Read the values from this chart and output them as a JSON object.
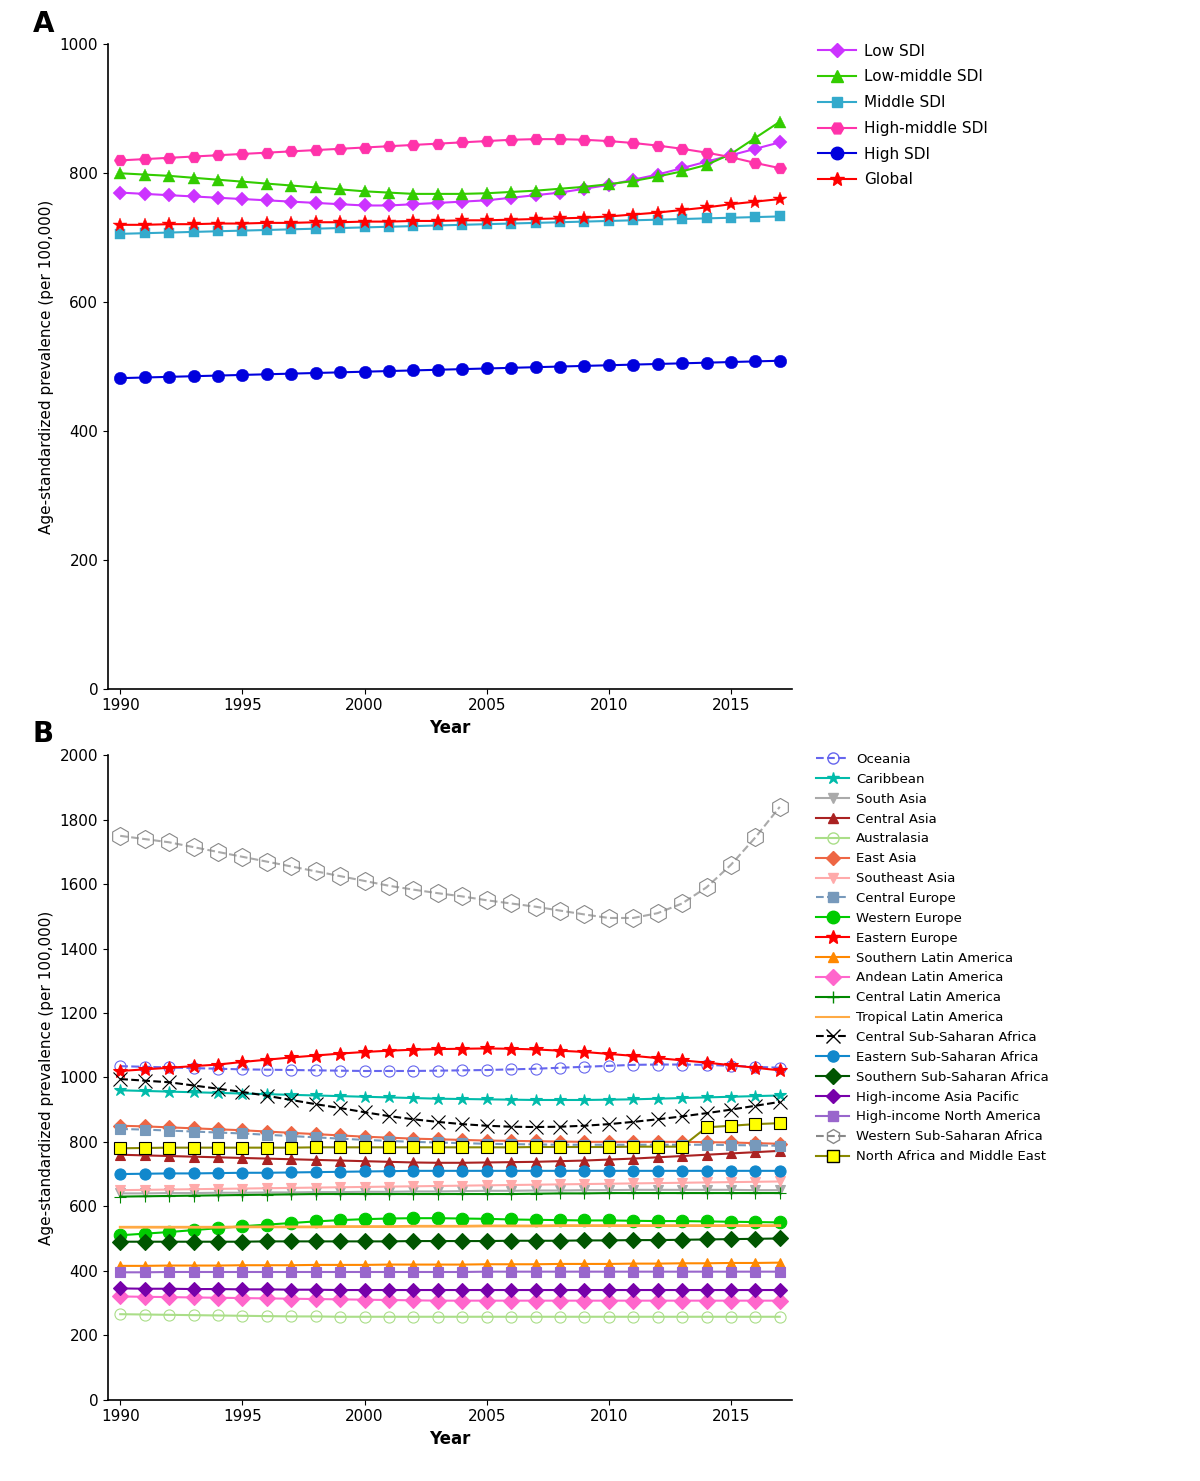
{
  "years": [
    1990,
    1991,
    1992,
    1993,
    1994,
    1995,
    1996,
    1997,
    1998,
    1999,
    2000,
    2001,
    2002,
    2003,
    2004,
    2005,
    2006,
    2007,
    2008,
    2009,
    2010,
    2011,
    2012,
    2013,
    2014,
    2015,
    2016,
    2017
  ],
  "panel_A": {
    "Low SDI": [
      770,
      768,
      766,
      764,
      762,
      760,
      758,
      756,
      754,
      752,
      750,
      750,
      752,
      754,
      756,
      758,
      762,
      766,
      770,
      776,
      782,
      790,
      798,
      808,
      818,
      828,
      838,
      848
    ],
    "Low-middle SDI": [
      800,
      798,
      796,
      793,
      790,
      787,
      784,
      781,
      778,
      775,
      772,
      770,
      768,
      768,
      768,
      769,
      771,
      773,
      776,
      779,
      783,
      788,
      795,
      803,
      813,
      830,
      855,
      880
    ],
    "Middle SDI": [
      706,
      707,
      708,
      709,
      710,
      711,
      712,
      713,
      714,
      715,
      716,
      717,
      718,
      719,
      720,
      721,
      722,
      723,
      724,
      725,
      726,
      727,
      728,
      729,
      730,
      731,
      732,
      733
    ],
    "High-middle SDI": [
      820,
      822,
      824,
      826,
      828,
      830,
      832,
      834,
      836,
      838,
      840,
      842,
      844,
      846,
      848,
      850,
      852,
      853,
      853,
      852,
      850,
      847,
      843,
      838,
      832,
      825,
      816,
      808
    ],
    "High SDI": [
      482,
      483,
      484,
      485,
      486,
      487,
      488,
      489,
      490,
      491,
      492,
      493,
      494,
      495,
      496,
      497,
      498,
      499,
      500,
      501,
      502,
      503,
      504,
      505,
      506,
      507,
      508,
      509
    ],
    "Global": [
      720,
      720,
      721,
      721,
      722,
      722,
      723,
      723,
      724,
      724,
      725,
      725,
      726,
      726,
      727,
      727,
      728,
      729,
      730,
      731,
      733,
      736,
      739,
      743,
      747,
      752,
      756,
      760
    ]
  },
  "panel_B": {
    "Oceania": [
      1035,
      1033,
      1031,
      1029,
      1027,
      1025,
      1024,
      1023,
      1022,
      1021,
      1020,
      1020,
      1020,
      1021,
      1022,
      1023,
      1025,
      1027,
      1030,
      1033,
      1036,
      1039,
      1040,
      1040,
      1039,
      1036,
      1033,
      1030
    ],
    "Caribbean": [
      960,
      958,
      956,
      954,
      952,
      950,
      948,
      946,
      944,
      942,
      940,
      938,
      936,
      934,
      933,
      932,
      931,
      930,
      930,
      930,
      931,
      932,
      934,
      936,
      938,
      940,
      942,
      944
    ],
    "South Asia": [
      640,
      640,
      641,
      641,
      642,
      642,
      643,
      643,
      644,
      644,
      645,
      645,
      646,
      646,
      647,
      648,
      648,
      649,
      649,
      650,
      650,
      651,
      651,
      651,
      651,
      651,
      650,
      650
    ],
    "Central Asia": [
      760,
      758,
      756,
      754,
      752,
      750,
      748,
      746,
      744,
      742,
      740,
      738,
      736,
      735,
      735,
      736,
      737,
      738,
      740,
      742,
      745,
      748,
      752,
      756,
      760,
      764,
      768,
      772
    ],
    "Australasia": [
      265,
      264,
      263,
      262,
      261,
      260,
      259,
      258,
      258,
      257,
      257,
      257,
      257,
      257,
      257,
      257,
      257,
      257,
      257,
      257,
      257,
      257,
      257,
      257,
      257,
      257,
      257,
      257
    ],
    "East Asia": [
      850,
      848,
      845,
      842,
      839,
      836,
      832,
      828,
      824,
      820,
      816,
      813,
      810,
      808,
      806,
      804,
      803,
      802,
      801,
      800,
      800,
      800,
      800,
      800,
      799,
      798,
      796,
      794
    ],
    "Southeast Asia": [
      650,
      651,
      652,
      653,
      654,
      655,
      656,
      657,
      658,
      659,
      660,
      661,
      662,
      663,
      664,
      665,
      666,
      667,
      668,
      669,
      670,
      671,
      672,
      673,
      674,
      675,
      676,
      677
    ],
    "Central Europe": [
      840,
      838,
      835,
      832,
      829,
      826,
      822,
      818,
      814,
      810,
      806,
      803,
      800,
      798,
      796,
      794,
      793,
      792,
      791,
      791,
      791,
      791,
      791,
      791,
      791,
      790,
      789,
      788
    ],
    "Western Europe": [
      510,
      515,
      520,
      526,
      532,
      538,
      543,
      548,
      553,
      557,
      560,
      562,
      563,
      563,
      562,
      561,
      559,
      558,
      557,
      556,
      556,
      555,
      554,
      554,
      553,
      552,
      551,
      550
    ],
    "Eastern Europe": [
      1020,
      1025,
      1030,
      1035,
      1040,
      1048,
      1055,
      1062,
      1068,
      1074,
      1079,
      1083,
      1086,
      1088,
      1089,
      1090,
      1089,
      1087,
      1083,
      1079,
      1073,
      1067,
      1060,
      1053,
      1046,
      1038,
      1030,
      1022
    ],
    "Southern Latin America": [
      415,
      415,
      416,
      416,
      416,
      417,
      417,
      417,
      418,
      418,
      418,
      419,
      419,
      419,
      419,
      420,
      420,
      420,
      421,
      421,
      421,
      422,
      422,
      423,
      423,
      424,
      424,
      425
    ],
    "Andean Latin America": [
      320,
      319,
      318,
      317,
      316,
      315,
      314,
      313,
      312,
      311,
      310,
      309,
      308,
      307,
      307,
      307,
      307,
      307,
      307,
      307,
      307,
      307,
      307,
      307,
      307,
      307,
      307,
      307
    ],
    "Central Latin America": [
      630,
      631,
      632,
      633,
      634,
      635,
      636,
      637,
      638,
      638,
      638,
      638,
      638,
      638,
      638,
      638,
      638,
      639,
      640,
      640,
      641,
      641,
      641,
      641,
      641,
      641,
      641,
      641
    ],
    "Tropical Latin America": [
      535,
      535,
      535,
      535,
      535,
      536,
      536,
      536,
      536,
      537,
      537,
      537,
      538,
      538,
      538,
      539,
      539,
      539,
      540,
      540,
      540,
      540,
      540,
      540,
      540,
      540,
      540,
      540
    ],
    "Central Sub-Saharan Africa": [
      995,
      990,
      985,
      975,
      965,
      955,
      943,
      930,
      917,
      905,
      892,
      880,
      870,
      862,
      855,
      850,
      847,
      846,
      847,
      850,
      855,
      862,
      870,
      879,
      889,
      900,
      912,
      924
    ],
    "Eastern Sub-Saharan Africa": [
      700,
      701,
      702,
      702,
      703,
      704,
      704,
      705,
      706,
      707,
      708,
      709,
      710,
      710,
      710,
      710,
      710,
      710,
      710,
      710,
      710,
      710,
      710,
      710,
      710,
      710,
      710,
      710
    ],
    "Southern Sub-Saharan Africa": [
      490,
      490,
      490,
      490,
      490,
      490,
      491,
      491,
      491,
      491,
      491,
      491,
      492,
      492,
      492,
      492,
      493,
      493,
      493,
      494,
      494,
      495,
      495,
      496,
      497,
      498,
      499,
      500
    ],
    "High-income Asia Pacific": [
      345,
      344,
      344,
      343,
      343,
      342,
      342,
      341,
      341,
      340,
      340,
      340,
      340,
      340,
      340,
      340,
      340,
      340,
      340,
      340,
      340,
      340,
      340,
      340,
      340,
      340,
      340,
      340
    ],
    "High-income North America": [
      395,
      395,
      396,
      396,
      396,
      396,
      396,
      396,
      396,
      396,
      396,
      396,
      396,
      396,
      396,
      397,
      397,
      397,
      397,
      397,
      397,
      397,
      397,
      397,
      397,
      397,
      397,
      397
    ],
    "Western Sub-Saharan Africa": [
      1750,
      1740,
      1730,
      1715,
      1700,
      1685,
      1670,
      1655,
      1640,
      1625,
      1610,
      1595,
      1583,
      1572,
      1562,
      1550,
      1540,
      1530,
      1518,
      1506,
      1495,
      1495,
      1510,
      1540,
      1590,
      1660,
      1745,
      1840
    ],
    "North Africa and Middle East": [
      780,
      781,
      782,
      782,
      782,
      782,
      782,
      782,
      783,
      783,
      783,
      783,
      783,
      783,
      783,
      783,
      783,
      784,
      784,
      784,
      784,
      785,
      785,
      785,
      845,
      850,
      855,
      858
    ]
  }
}
